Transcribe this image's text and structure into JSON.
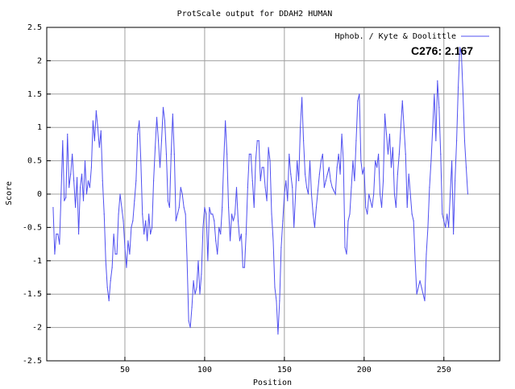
{
  "chart_data": {
    "type": "line",
    "title": "ProtScale output for DDAH2 HUMAN",
    "xlabel": "Position",
    "ylabel": "Score",
    "xlim": [
      1,
      285
    ],
    "ylim": [
      -2.5,
      2.5
    ],
    "x_ticks": [
      50,
      100,
      150,
      200,
      250
    ],
    "y_ticks": [
      -2.5,
      -2,
      -1.5,
      -1,
      -0.5,
      0,
      0.5,
      1,
      1.5,
      2,
      2.5
    ],
    "y_tick_labels": [
      "-2.5",
      "-2",
      "-1.5",
      "-1",
      "-0.5",
      "0",
      "0.5",
      "1",
      "1.5",
      "2",
      "2.5"
    ],
    "grid": true,
    "legend_position": "top-right",
    "series": [
      {
        "name": "Hphob. / Kyte & Doolittle",
        "color": "#5050f0",
        "points": [
          [
            5,
            -0.2
          ],
          [
            6,
            -0.9
          ],
          [
            7,
            -0.6
          ],
          [
            8,
            -0.6
          ],
          [
            9,
            -0.75
          ],
          [
            10,
            0.0
          ],
          [
            11,
            0.8
          ],
          [
            12,
            -0.1
          ],
          [
            13,
            -0.05
          ],
          [
            14,
            0.9
          ],
          [
            15,
            0.1
          ],
          [
            16,
            0.3
          ],
          [
            17,
            0.6
          ],
          [
            18,
            0.2
          ],
          [
            19,
            -0.2
          ],
          [
            20,
            0.25
          ],
          [
            21,
            -0.6
          ],
          [
            22,
            0.1
          ],
          [
            23,
            0.3
          ],
          [
            24,
            -0.1
          ],
          [
            25,
            0.5
          ],
          [
            26,
            0.0
          ],
          [
            27,
            0.2
          ],
          [
            28,
            0.1
          ],
          [
            29,
            0.4
          ],
          [
            30,
            1.1
          ],
          [
            31,
            0.8
          ],
          [
            32,
            1.25
          ],
          [
            33,
            1.0
          ],
          [
            34,
            0.7
          ],
          [
            35,
            0.95
          ],
          [
            36,
            0.2
          ],
          [
            37,
            -0.3
          ],
          [
            38,
            -1.0
          ],
          [
            39,
            -1.4
          ],
          [
            40,
            -1.6
          ],
          [
            41,
            -1.3
          ],
          [
            42,
            -1.1
          ],
          [
            43,
            -0.6
          ],
          [
            44,
            -0.9
          ],
          [
            45,
            -0.9
          ],
          [
            46,
            -0.3
          ],
          [
            47,
            0.0
          ],
          [
            48,
            -0.2
          ],
          [
            49,
            -0.4
          ],
          [
            50,
            -0.8
          ],
          [
            51,
            -1.1
          ],
          [
            52,
            -0.7
          ],
          [
            53,
            -0.9
          ],
          [
            54,
            -0.5
          ],
          [
            55,
            -0.4
          ],
          [
            56,
            -0.1
          ],
          [
            57,
            0.2
          ],
          [
            58,
            0.9
          ],
          [
            59,
            1.1
          ],
          [
            60,
            0.5
          ],
          [
            61,
            -0.3
          ],
          [
            62,
            -0.6
          ],
          [
            63,
            -0.4
          ],
          [
            64,
            -0.7
          ],
          [
            65,
            -0.3
          ],
          [
            66,
            -0.6
          ],
          [
            67,
            -0.5
          ],
          [
            68,
            0.2
          ],
          [
            69,
            0.7
          ],
          [
            70,
            1.15
          ],
          [
            71,
            0.8
          ],
          [
            72,
            0.4
          ],
          [
            73,
            0.8
          ],
          [
            74,
            1.3
          ],
          [
            75,
            1.1
          ],
          [
            76,
            0.6
          ],
          [
            77,
            -0.1
          ],
          [
            78,
            -0.2
          ],
          [
            79,
            0.6
          ],
          [
            80,
            1.2
          ],
          [
            81,
            0.6
          ],
          [
            82,
            -0.4
          ],
          [
            83,
            -0.3
          ],
          [
            84,
            -0.2
          ],
          [
            85,
            0.1
          ],
          [
            86,
            0.0
          ],
          [
            87,
            -0.2
          ],
          [
            88,
            -0.3
          ],
          [
            89,
            -1.0
          ],
          [
            90,
            -1.9
          ],
          [
            91,
            -2.0
          ],
          [
            92,
            -1.7
          ],
          [
            93,
            -1.3
          ],
          [
            94,
            -1.5
          ],
          [
            95,
            -1.4
          ],
          [
            96,
            -1.0
          ],
          [
            97,
            -1.5
          ],
          [
            98,
            -1.2
          ],
          [
            99,
            -0.5
          ],
          [
            100,
            -0.2
          ],
          [
            101,
            -0.3
          ],
          [
            102,
            -1.0
          ],
          [
            103,
            -0.2
          ],
          [
            104,
            -0.3
          ],
          [
            105,
            -0.3
          ],
          [
            106,
            -0.4
          ],
          [
            107,
            -0.7
          ],
          [
            108,
            -0.9
          ],
          [
            109,
            -0.5
          ],
          [
            110,
            -0.6
          ],
          [
            111,
            -0.2
          ],
          [
            112,
            0.5
          ],
          [
            113,
            1.1
          ],
          [
            114,
            0.6
          ],
          [
            115,
            -0.2
          ],
          [
            116,
            -0.7
          ],
          [
            117,
            -0.3
          ],
          [
            118,
            -0.4
          ],
          [
            119,
            -0.3
          ],
          [
            120,
            0.1
          ],
          [
            121,
            -0.4
          ],
          [
            122,
            -0.7
          ],
          [
            123,
            -0.6
          ],
          [
            124,
            -1.1
          ],
          [
            125,
            -1.1
          ],
          [
            126,
            -0.6
          ],
          [
            127,
            0.1
          ],
          [
            128,
            0.6
          ],
          [
            129,
            0.6
          ],
          [
            130,
            0.2
          ],
          [
            131,
            -0.2
          ],
          [
            132,
            0.5
          ],
          [
            133,
            0.8
          ],
          [
            134,
            0.8
          ],
          [
            135,
            0.2
          ],
          [
            136,
            0.4
          ],
          [
            137,
            0.4
          ],
          [
            138,
            0.1
          ],
          [
            139,
            -0.1
          ],
          [
            140,
            0.7
          ],
          [
            141,
            0.5
          ],
          [
            142,
            -0.3
          ],
          [
            143,
            -0.7
          ],
          [
            144,
            -1.4
          ],
          [
            145,
            -1.6
          ],
          [
            146,
            -2.1
          ],
          [
            147,
            -1.6
          ],
          [
            148,
            -0.8
          ],
          [
            149,
            -0.4
          ],
          [
            150,
            0.0
          ],
          [
            151,
            0.2
          ],
          [
            152,
            -0.1
          ],
          [
            153,
            0.6
          ],
          [
            154,
            0.3
          ],
          [
            155,
            0.1
          ],
          [
            156,
            -0.5
          ],
          [
            157,
            0.0
          ],
          [
            158,
            0.5
          ],
          [
            159,
            0.2
          ],
          [
            160,
            1.0
          ],
          [
            161,
            1.45
          ],
          [
            162,
            0.8
          ],
          [
            163,
            0.3
          ],
          [
            164,
            0.1
          ],
          [
            165,
            0.0
          ],
          [
            166,
            0.5
          ],
          [
            167,
            0.0
          ],
          [
            168,
            -0.3
          ],
          [
            169,
            -0.5
          ],
          [
            170,
            -0.2
          ],
          [
            171,
            0.05
          ],
          [
            172,
            0.3
          ],
          [
            173,
            0.5
          ],
          [
            174,
            0.6
          ],
          [
            175,
            0.1
          ],
          [
            176,
            0.2
          ],
          [
            177,
            0.3
          ],
          [
            178,
            0.4
          ],
          [
            179,
            0.2
          ],
          [
            180,
            0.1
          ],
          [
            181,
            0.05
          ],
          [
            182,
            0.0
          ],
          [
            183,
            0.4
          ],
          [
            184,
            0.6
          ],
          [
            185,
            0.3
          ],
          [
            186,
            0.9
          ],
          [
            187,
            0.5
          ],
          [
            188,
            -0.8
          ],
          [
            189,
            -0.9
          ],
          [
            190,
            -0.4
          ],
          [
            191,
            -0.3
          ],
          [
            192,
            0.1
          ],
          [
            193,
            0.5
          ],
          [
            194,
            0.2
          ],
          [
            195,
            0.8
          ],
          [
            196,
            1.4
          ],
          [
            197,
            1.5
          ],
          [
            198,
            0.5
          ],
          [
            199,
            0.3
          ],
          [
            200,
            0.4
          ],
          [
            201,
            -0.2
          ],
          [
            202,
            -0.3
          ],
          [
            203,
            0.0
          ],
          [
            204,
            -0.1
          ],
          [
            205,
            -0.2
          ],
          [
            206,
            0.0
          ],
          [
            207,
            0.5
          ],
          [
            208,
            0.4
          ],
          [
            209,
            0.6
          ],
          [
            210,
            0.0
          ],
          [
            211,
            -0.2
          ],
          [
            212,
            0.2
          ],
          [
            213,
            1.2
          ],
          [
            214,
            0.9
          ],
          [
            215,
            0.6
          ],
          [
            216,
            0.9
          ],
          [
            217,
            0.4
          ],
          [
            218,
            0.7
          ],
          [
            219,
            0.0
          ],
          [
            220,
            -0.2
          ],
          [
            221,
            0.3
          ],
          [
            222,
            0.6
          ],
          [
            223,
            1.0
          ],
          [
            224,
            1.4
          ],
          [
            225,
            1.0
          ],
          [
            226,
            0.6
          ],
          [
            227,
            -0.2
          ],
          [
            228,
            0.3
          ],
          [
            229,
            0.0
          ],
          [
            230,
            -0.3
          ],
          [
            231,
            -0.4
          ],
          [
            232,
            -1.0
          ],
          [
            233,
            -1.5
          ],
          [
            234,
            -1.4
          ],
          [
            235,
            -1.3
          ],
          [
            236,
            -1.4
          ],
          [
            237,
            -1.5
          ],
          [
            238,
            -1.6
          ],
          [
            239,
            -0.9
          ],
          [
            240,
            -0.5
          ],
          [
            241,
            0.1
          ],
          [
            242,
            0.5
          ],
          [
            243,
            1.0
          ],
          [
            244,
            1.5
          ],
          [
            245,
            0.8
          ],
          [
            246,
            1.7
          ],
          [
            247,
            1.3
          ],
          [
            248,
            0.6
          ],
          [
            249,
            -0.3
          ],
          [
            250,
            -0.4
          ],
          [
            251,
            -0.5
          ],
          [
            252,
            -0.3
          ],
          [
            253,
            -0.5
          ],
          [
            254,
            0.0
          ],
          [
            255,
            0.5
          ],
          [
            256,
            -0.6
          ],
          [
            257,
            0.2
          ],
          [
            258,
            0.8
          ],
          [
            259,
            1.6
          ],
          [
            260,
            2.2
          ],
          [
            261,
            2.1
          ],
          [
            262,
            1.5
          ],
          [
            263,
            0.8
          ],
          [
            264,
            0.4
          ],
          [
            265,
            0.0
          ]
        ]
      }
    ],
    "annotation": "C276: 2.167"
  }
}
